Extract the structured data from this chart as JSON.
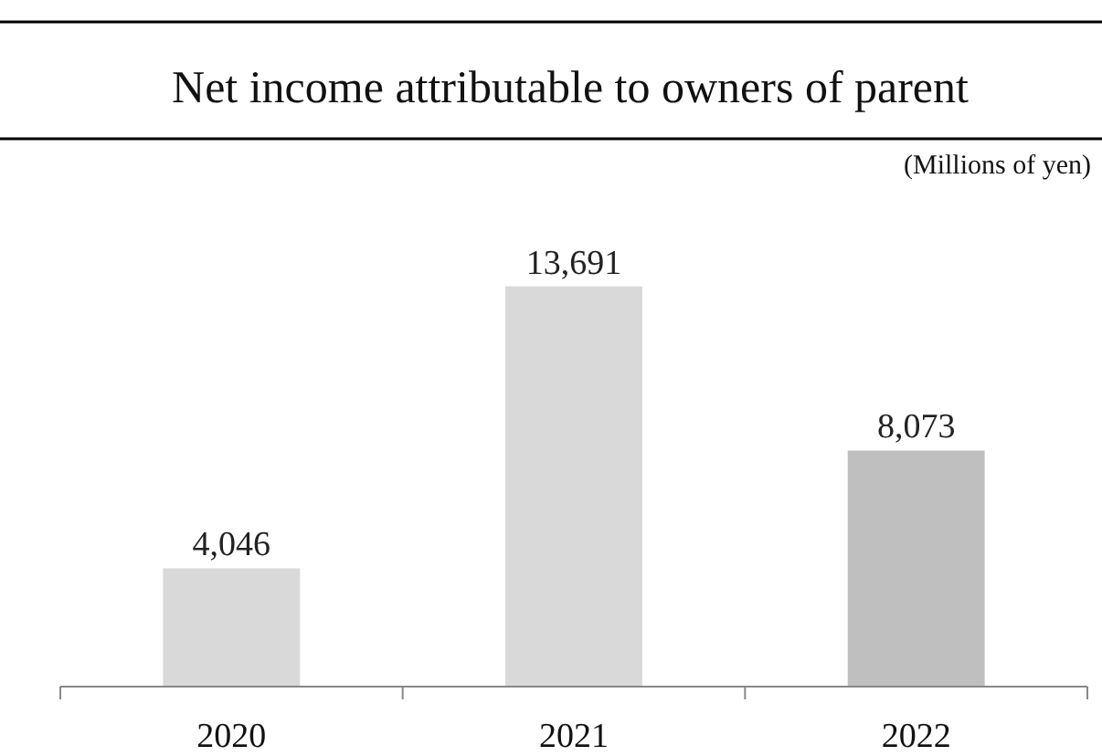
{
  "chart_data": {
    "type": "bar",
    "title": "Net income attributable to owners of parent",
    "subtitle": "(Millions of yen)",
    "categories": [
      "2020",
      "2021",
      "2022"
    ],
    "values": [
      4046,
      13691,
      8073
    ],
    "value_labels": [
      "4,046",
      "13,691",
      "8,073"
    ],
    "colors": [
      "#d9d9d9",
      "#d9d9d9",
      "#bfbfbf"
    ]
  }
}
